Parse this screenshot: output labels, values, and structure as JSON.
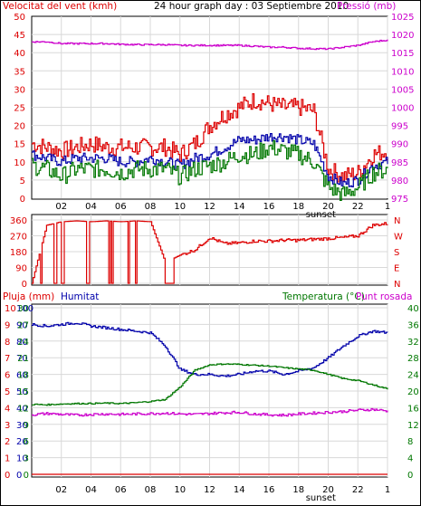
{
  "colors": {
    "wind": "#dd0000",
    "wind_avg": "#0000aa",
    "wind_min": "#007700",
    "pressure": "#cc00cc",
    "direction": "#dd0000",
    "humidity": "#0000aa",
    "temperature": "#007700",
    "dewpoint": "#cc00cc",
    "rain": "#dd0000",
    "frame": "#000000",
    "grid": "#d8d8d8"
  },
  "header": {
    "wind_label": "Velocitat del vent (kmh)",
    "title": "24 hour graph day : 03 Septiembre 2010",
    "pressure_label": "Pressió (mb)"
  },
  "middle": {
    "compass": [
      "N",
      "W",
      "S",
      "E",
      "N"
    ]
  },
  "bottom_header": {
    "rain_label": "Pluja (mm)",
    "humidity_label": "Humitat",
    "temp_label": "Temperatura (°C)",
    "dew_label": "Punt rosada"
  },
  "x_axis": {
    "ticks": [
      "02",
      "04",
      "06",
      "08",
      "10",
      "12",
      "14",
      "16",
      "18",
      "20",
      "22"
    ],
    "last_tick": "1",
    "sunset_label": "sunset"
  },
  "chart_data": [
    {
      "type": "line",
      "title": "24 hour graph day : 03 Septiembre 2010",
      "x_range_hours": [
        0,
        24
      ],
      "x_ticks_hours": [
        2,
        4,
        6,
        8,
        10,
        12,
        14,
        16,
        18,
        20,
        22,
        24
      ],
      "y_left": {
        "label": "Velocitat del vent (kmh)",
        "ylim": [
          0,
          50
        ],
        "ticks": [
          0,
          5,
          10,
          15,
          20,
          25,
          30,
          35,
          40,
          45,
          50
        ]
      },
      "y_right": {
        "label": "Pressió (mb)",
        "ylim": [
          975,
          1025
        ],
        "ticks": [
          975,
          980,
          985,
          990,
          995,
          1000,
          1005,
          1010,
          1015,
          1020,
          1025
        ]
      },
      "hours": [
        0,
        1,
        2,
        3,
        4,
        5,
        6,
        7,
        8,
        9,
        10,
        11,
        12,
        13,
        14,
        15,
        16,
        17,
        18,
        19,
        20,
        21,
        22,
        23,
        24
      ],
      "series": [
        {
          "axis": "left",
          "values": [
            15,
            14,
            13,
            14,
            15,
            14,
            14,
            14,
            14,
            14,
            12,
            15,
            20,
            23,
            25,
            27,
            26,
            25,
            25,
            24,
            8,
            6,
            7,
            12,
            13
          ]
        },
        {
          "axis": "left",
          "values": [
            12,
            11,
            10,
            11,
            11,
            11,
            10,
            10,
            11,
            10,
            9,
            11,
            12,
            14,
            16,
            16,
            17,
            17,
            16,
            15,
            6,
            4,
            5,
            9,
            10
          ]
        },
        {
          "axis": "left",
          "values": [
            9,
            8,
            6,
            8,
            8,
            8,
            7,
            8,
            8,
            8,
            6,
            8,
            9,
            10,
            12,
            12,
            14,
            13,
            12,
            10,
            3,
            1,
            3,
            7,
            8
          ]
        },
        {
          "axis": "right",
          "values": [
            1018,
            1018,
            1017.5,
            1017.5,
            1017.5,
            1017.5,
            1017.3,
            1017.2,
            1017.2,
            1017.2,
            1017,
            1017,
            1017,
            1017,
            1017,
            1016.8,
            1016.5,
            1016.5,
            1016.2,
            1016.1,
            1016,
            1016.5,
            1017,
            1018,
            1018.5
          ]
        }
      ]
    },
    {
      "type": "line",
      "y_left": {
        "ticks": [
          0,
          90,
          180,
          270,
          360
        ]
      },
      "y_right": {
        "ticks": [
          "N",
          "W",
          "S",
          "E",
          "N"
        ]
      },
      "hours": [
        0,
        1,
        2,
        3,
        4,
        5,
        6,
        7,
        8,
        9,
        10,
        11,
        12,
        13,
        14,
        15,
        16,
        17,
        18,
        19,
        20,
        21,
        22,
        23,
        24
      ],
      "series": [
        {
          "values": [
            0,
            330,
            350,
            355,
            350,
            355,
            350,
            355,
            350,
            120,
            160,
            190,
            260,
            225,
            230,
            240,
            240,
            245,
            245,
            250,
            255,
            260,
            270,
            330,
            340
          ]
        }
      ]
    },
    {
      "type": "line",
      "y_left": {
        "label": "Pluja (mm)",
        "ylim": [
          0,
          10
        ],
        "ticks": [
          0,
          1,
          2,
          3,
          4,
          5,
          6,
          7,
          8,
          9,
          10
        ]
      },
      "y_left_secondary": {
        "label": "Humitat",
        "ylim": [
          0,
          100
        ],
        "ticks": [
          0,
          10,
          20,
          30,
          40,
          50,
          60,
          70,
          80,
          90,
          100
        ]
      },
      "y_temp_scale": {
        "ticks": [
          0,
          3,
          6,
          9,
          12,
          15,
          18,
          21,
          24,
          27,
          30
        ]
      },
      "y_right": {
        "label": "Temperatura (°C)",
        "ylim": [
          0,
          40
        ],
        "ticks": [
          0,
          4,
          8,
          12,
          16,
          20,
          24,
          28,
          32,
          36,
          40
        ]
      },
      "hours": [
        0,
        1,
        2,
        3,
        4,
        5,
        6,
        7,
        8,
        9,
        10,
        11,
        12,
        13,
        14,
        15,
        16,
        17,
        18,
        19,
        20,
        21,
        22,
        23,
        24
      ],
      "series": [
        {
          "axis": "humidity",
          "values": [
            90,
            89,
            90,
            91,
            89,
            88,
            87,
            86,
            85,
            77,
            63,
            60,
            60,
            59,
            60,
            62,
            62,
            60,
            62,
            64,
            70,
            77,
            83,
            86,
            85
          ]
        },
        {
          "axis": "right",
          "values": [
            16.8,
            16.7,
            16.9,
            17,
            17,
            17.1,
            17,
            17.2,
            17.5,
            18,
            21,
            25,
            26.3,
            26.5,
            26.4,
            26.2,
            26,
            25.6,
            25.3,
            25,
            24,
            23,
            22.5,
            21.5,
            20.5
          ]
        },
        {
          "axis": "right",
          "values": [
            14.3,
            14.6,
            14.4,
            14.2,
            14.4,
            14.5,
            14.4,
            14.5,
            14.6,
            14.7,
            14.5,
            14.4,
            14.6,
            14.8,
            14.9,
            14.5,
            14.3,
            14.2,
            14.5,
            14.7,
            14.9,
            15.1,
            15.4,
            15.6,
            15.2
          ]
        },
        {
          "axis": "left",
          "values": [
            0,
            0,
            0,
            0,
            0,
            0,
            0,
            0,
            0,
            0,
            0,
            0,
            0,
            0,
            0,
            0,
            0,
            0,
            0,
            0,
            0,
            0,
            0,
            0,
            0
          ]
        }
      ]
    }
  ]
}
